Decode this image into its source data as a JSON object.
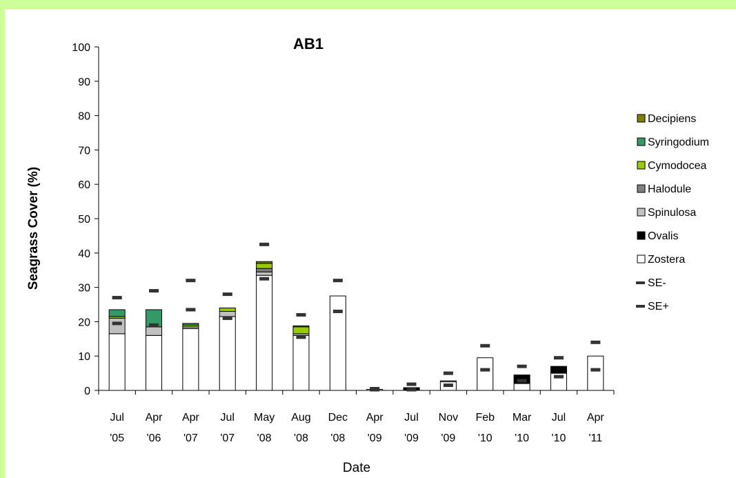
{
  "chart_data": {
    "type": "bar",
    "stacked": true,
    "title": "AB1",
    "xlabel": "Date",
    "ylabel": "Seagrass Cover (%)",
    "ylim": [
      0,
      100
    ],
    "yticks": [
      0,
      10,
      20,
      30,
      40,
      50,
      60,
      70,
      80,
      90,
      100
    ],
    "ytick_labels": [
      "0",
      "10",
      "20",
      "30",
      "40",
      "50",
      "60",
      "70",
      "80",
      "90",
      "100"
    ],
    "categories": [
      [
        "Jul",
        "'05"
      ],
      [
        "Apr",
        "'06"
      ],
      [
        "Apr",
        "'07"
      ],
      [
        "Jul",
        "'07"
      ],
      [
        "May",
        "'08"
      ],
      [
        "Aug",
        "'08"
      ],
      [
        "Dec",
        "'08"
      ],
      [
        "Apr",
        "'09"
      ],
      [
        "Jul",
        "'09"
      ],
      [
        "Nov",
        "'09"
      ],
      [
        "Feb",
        "'10"
      ],
      [
        "Mar",
        "'10"
      ],
      [
        "Jul",
        "'10"
      ],
      [
        "Apr",
        "'11"
      ]
    ],
    "series": [
      {
        "name": "Zostera",
        "color": "#ffffff",
        "values": [
          16.5,
          16,
          18,
          21.5,
          33.5,
          16,
          27.5,
          0.3,
          0,
          2.5,
          9.5,
          2,
          5,
          10
        ]
      },
      {
        "name": "Ovalis",
        "color": "#000000",
        "values": [
          0,
          0,
          0,
          0,
          0,
          0,
          0,
          0,
          0.8,
          0,
          0,
          2.5,
          2,
          0
        ]
      },
      {
        "name": "Spinulosa",
        "color": "#c0c0c0",
        "values": [
          4.5,
          2.5,
          0.5,
          1.5,
          1,
          0.5,
          0,
          0,
          0,
          0.3,
          0,
          0,
          0,
          0
        ]
      },
      {
        "name": "Halodule",
        "color": "#808080",
        "values": [
          0,
          0,
          0,
          0,
          1,
          0,
          0,
          0,
          0,
          0,
          0,
          0,
          0,
          0
        ]
      },
      {
        "name": "Cymodocea",
        "color": "#99cc00",
        "values": [
          0.5,
          0,
          0.5,
          1,
          1.5,
          2,
          0,
          0,
          0,
          0,
          0,
          0,
          0,
          0
        ]
      },
      {
        "name": "Syringodium",
        "color": "#339966",
        "values": [
          2,
          5,
          0.5,
          0,
          0,
          0.3,
          0,
          0,
          0,
          0,
          0,
          0,
          0,
          0
        ]
      },
      {
        "name": "Decipiens",
        "color": "#808000",
        "values": [
          0,
          0,
          0,
          0,
          0.5,
          0,
          0,
          0,
          0,
          0,
          0,
          0,
          0,
          0
        ]
      }
    ],
    "se_minus": {
      "name": "SE-",
      "color": "#333333",
      "values": [
        19.5,
        19,
        23.5,
        21,
        32.5,
        15.5,
        23,
        0.2,
        0.2,
        1.5,
        6,
        2.8,
        4,
        6
      ]
    },
    "se_plus": {
      "name": "SE+",
      "color": "#333333",
      "values": [
        27,
        29,
        32,
        28,
        42.5,
        22,
        32,
        0.5,
        1.8,
        5,
        13,
        7,
        9.5,
        14
      ]
    },
    "legend": [
      "Decipiens",
      "Syringodium",
      "Cymodocea",
      "Halodule",
      "Spinulosa",
      "Ovalis",
      "Zostera",
      "SE-",
      "SE+"
    ],
    "legend_position": "right",
    "grid": false
  }
}
